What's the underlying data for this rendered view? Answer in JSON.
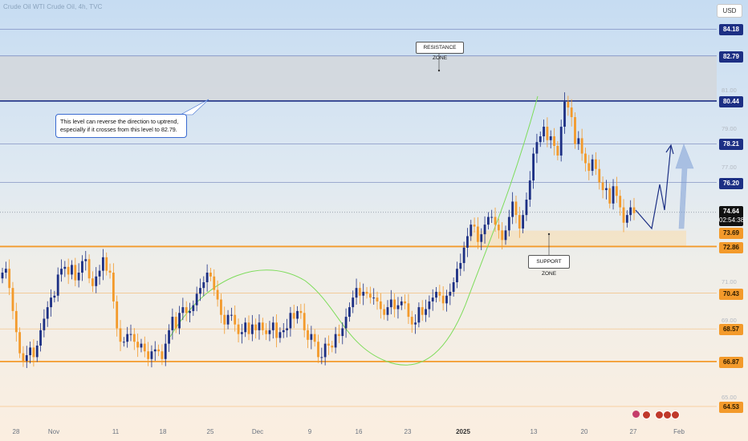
{
  "header": {
    "title": "Crude Oil WTI Crude Oil, 4h, TVC",
    "currency": "USD"
  },
  "annotations": {
    "resistance": "RESISTANCE ZONE",
    "support": "SUPPORT ZONE",
    "note": "This level can reverse the direction to uptrend, especially if it crosses from this level to 82.79."
  },
  "price": {
    "value": "74.64",
    "countdown": "02:54:38"
  },
  "price_tags": {
    "p8418": "84.18",
    "p8279": "82.79",
    "p8044": "80.44",
    "p7821": "78.21",
    "p7620": "76.20",
    "p7369": "73.69",
    "p7286": "72.86",
    "p7043": "70.43",
    "p6857": "68.57",
    "p6687": "66.87",
    "p6453": "64.53"
  },
  "axis_labels": {
    "a81": "81.00",
    "a79": "79.00",
    "a77": "77.00",
    "a71": "71.00",
    "a69": "69.00",
    "a65": "65.00"
  },
  "x_ticks": [
    "28",
    "Nov",
    "11",
    "18",
    "25",
    "Dec",
    "9",
    "16",
    "23",
    "2025",
    "13",
    "20",
    "27",
    "Feb"
  ],
  "colors": {
    "blue_tag": "#1c2f84",
    "orange_tag": "#f39a2b",
    "up": "#1c2f84",
    "down": "#f39a2b",
    "curve": "#7ddc5a"
  },
  "chart_data": {
    "type": "candlestick",
    "ylim": [
      63.9,
      85.7
    ],
    "resistance_zone": [
      80.44,
      82.79
    ],
    "support_zone": [
      72.86,
      73.69
    ],
    "levels_blue": [
      84.18,
      82.79,
      80.44,
      78.21,
      76.2
    ],
    "levels_orange": [
      72.86,
      70.43,
      68.57,
      66.87,
      64.53
    ],
    "closes": [
      71.5,
      71.7,
      70.7,
      69.5,
      68.4,
      67.3,
      66.9,
      67.2,
      67.6,
      67.1,
      67.7,
      68.5,
      69.1,
      69.7,
      70.2,
      70.3,
      71.4,
      71.7,
      71.8,
      71.4,
      71.9,
      71.1,
      71.5,
      72.1,
      72.2,
      71.2,
      70.8,
      71.3,
      71.6,
      72.3,
      71.6,
      71.5,
      70.0,
      68.6,
      67.9,
      67.9,
      68.3,
      68.3,
      67.9,
      67.6,
      67.8,
      67.4,
      67.0,
      67.4,
      67.5,
      67.4,
      67.0,
      67.8,
      68.5,
      69.2,
      68.6,
      69.4,
      69.7,
      69.4,
      69.5,
      69.8,
      70.4,
      70.7,
      71.0,
      71.5,
      71.3,
      70.6,
      70.1,
      69.3,
      68.8,
      69.3,
      69.3,
      68.8,
      68.3,
      68.4,
      68.9,
      68.3,
      68.8,
      68.5,
      68.9,
      68.5,
      68.3,
      68.5,
      68.9,
      68.1,
      68.4,
      68.5,
      68.6,
      69.4,
      69.1,
      69.5,
      69.4,
      68.5,
      68.0,
      68.3,
      67.9,
      67.1,
      67.1,
      67.8,
      67.7,
      67.6,
      68.3,
      68.2,
      68.6,
      69.2,
      69.7,
      70.2,
      70.7,
      70.3,
      70.5,
      70.4,
      70.2,
      70.2,
      70.0,
      69.6,
      69.3,
      69.7,
      70.1,
      69.6,
      69.8,
      70.0,
      69.9,
      69.2,
      68.8,
      68.9,
      69.7,
      69.3,
      69.6,
      70.0,
      70.2,
      70.5,
      70.3,
      69.9,
      70.3,
      70.5,
      71.0,
      71.7,
      72.0,
      72.8,
      73.4,
      74.0,
      73.9,
      73.1,
      73.5,
      74.0,
      74.4,
      74.4,
      74.0,
      73.7,
      73.2,
      73.7,
      74.4,
      75.2,
      74.5,
      73.8,
      74.5,
      75.3,
      76.3,
      77.7,
      78.3,
      78.6,
      79.1,
      78.4,
      78.6,
      78.1,
      77.6,
      79.1,
      80.4,
      80.1,
      79.6,
      78.2,
      78.5,
      77.7,
      77.2,
      76.8,
      77.4,
      76.9,
      76.2,
      75.8,
      75.9,
      75.1,
      76.0,
      75.5,
      74.9,
      74.1,
      74.5,
      74.9,
      74.6
    ]
  }
}
